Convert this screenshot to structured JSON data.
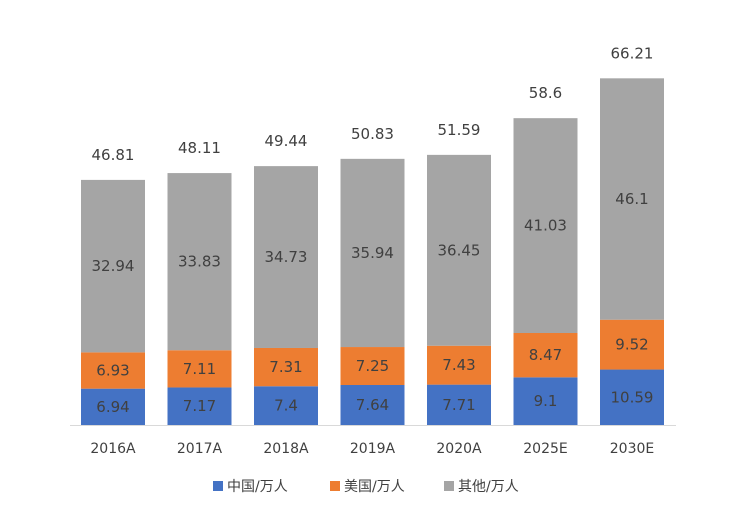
{
  "chart_data": {
    "type": "bar",
    "stacked": true,
    "categories": [
      "2016A",
      "2017A",
      "2018A",
      "2019A",
      "2020A",
      "2025E",
      "2030E"
    ],
    "series": [
      {
        "name": "中国/万人",
        "color": "#4472C4",
        "values": [
          6.94,
          7.17,
          7.4,
          7.64,
          7.71,
          9.1,
          10.59
        ]
      },
      {
        "name": "美国/万人",
        "color": "#ED7D31",
        "values": [
          6.93,
          7.11,
          7.31,
          7.25,
          7.43,
          8.47,
          9.52
        ]
      },
      {
        "name": "其他/万人",
        "color": "#A5A5A5",
        "values": [
          32.94,
          33.83,
          34.73,
          35.94,
          36.45,
          41.03,
          46.1
        ]
      }
    ],
    "totals": [
      46.81,
      48.11,
      49.44,
      50.83,
      51.59,
      58.6,
      66.21
    ],
    "ylim": [
      0,
      72
    ],
    "grid": false,
    "legend_position": "bottom",
    "title": "",
    "xlabel": "",
    "ylabel": ""
  }
}
